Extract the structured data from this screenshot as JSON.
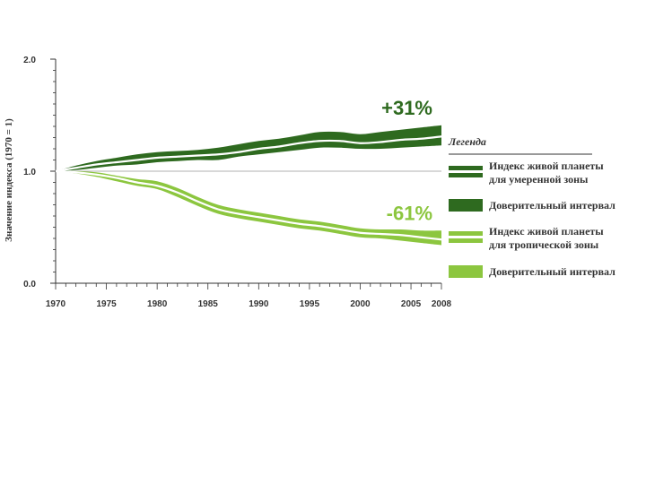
{
  "chart_data": {
    "type": "area",
    "ylabel": "Значение индекса (1970 = 1)",
    "xlabel": "",
    "ylim": [
      0,
      2
    ],
    "yticks": [
      "0.0",
      "1.0",
      "2.0"
    ],
    "yticks_values": [
      0,
      1,
      2
    ],
    "xlim": [
      1970,
      2008
    ],
    "xticks": [
      "1970",
      "1975",
      "1980",
      "1985",
      "1990",
      "1995",
      "2000",
      "2005",
      "2008"
    ],
    "xticks_values": [
      1970,
      1975,
      1980,
      1985,
      1990,
      1995,
      2000,
      2005,
      2008
    ],
    "reference_line": 1.0,
    "x": [
      1970,
      1972,
      1974,
      1976,
      1978,
      1980,
      1982,
      1984,
      1986,
      1988,
      1990,
      1992,
      1994,
      1996,
      1998,
      2000,
      2002,
      2004,
      2006,
      2008
    ],
    "series": [
      {
        "name": "Индекс живой планеты для умеренной зоны",
        "color": "#2e6a1f",
        "values": [
          1.0,
          1.03,
          1.06,
          1.08,
          1.1,
          1.12,
          1.13,
          1.14,
          1.15,
          1.17,
          1.2,
          1.22,
          1.25,
          1.27,
          1.27,
          1.25,
          1.26,
          1.28,
          1.29,
          1.31
        ],
        "ci_lower": [
          1.0,
          1.01,
          1.03,
          1.05,
          1.06,
          1.08,
          1.09,
          1.1,
          1.1,
          1.13,
          1.15,
          1.17,
          1.19,
          1.21,
          1.21,
          1.2,
          1.2,
          1.21,
          1.22,
          1.23
        ],
        "ci_upper": [
          1.0,
          1.05,
          1.09,
          1.12,
          1.15,
          1.17,
          1.18,
          1.19,
          1.21,
          1.24,
          1.27,
          1.29,
          1.32,
          1.35,
          1.35,
          1.33,
          1.35,
          1.37,
          1.39,
          1.41
        ],
        "annotation": "+31%"
      },
      {
        "name": "Индекс живой планеты для тропической зоны",
        "color": "#8cc63f",
        "values": [
          1.0,
          0.99,
          0.97,
          0.94,
          0.9,
          0.87,
          0.81,
          0.73,
          0.66,
          0.62,
          0.59,
          0.56,
          0.53,
          0.51,
          0.48,
          0.45,
          0.44,
          0.43,
          0.41,
          0.39
        ],
        "ci_lower": [
          1.0,
          0.98,
          0.95,
          0.91,
          0.87,
          0.84,
          0.77,
          0.69,
          0.62,
          0.58,
          0.55,
          0.52,
          0.49,
          0.47,
          0.44,
          0.41,
          0.4,
          0.38,
          0.36,
          0.34
        ],
        "ci_upper": [
          1.0,
          1.0,
          0.99,
          0.96,
          0.93,
          0.91,
          0.85,
          0.77,
          0.7,
          0.66,
          0.63,
          0.6,
          0.57,
          0.55,
          0.52,
          0.49,
          0.48,
          0.48,
          0.47,
          0.47
        ],
        "annotation": "-61%"
      }
    ],
    "legend": {
      "title": "Легенда",
      "placement": "right",
      "items": [
        {
          "label_lines": [
            "Индекс живой планеты",
            "для умеренной зоны"
          ],
          "kind": "index",
          "color": "#2e6a1f"
        },
        {
          "label_lines": [
            "Доверительный интервал"
          ],
          "kind": "ci",
          "color": "#2e6a1f"
        },
        {
          "label_lines": [
            "Индекс живой планеты",
            "для тропической зоны"
          ],
          "kind": "index",
          "color": "#8cc63f"
        },
        {
          "label_lines": [
            "Доверительный интервал"
          ],
          "kind": "ci",
          "color": "#8cc63f"
        }
      ]
    }
  }
}
